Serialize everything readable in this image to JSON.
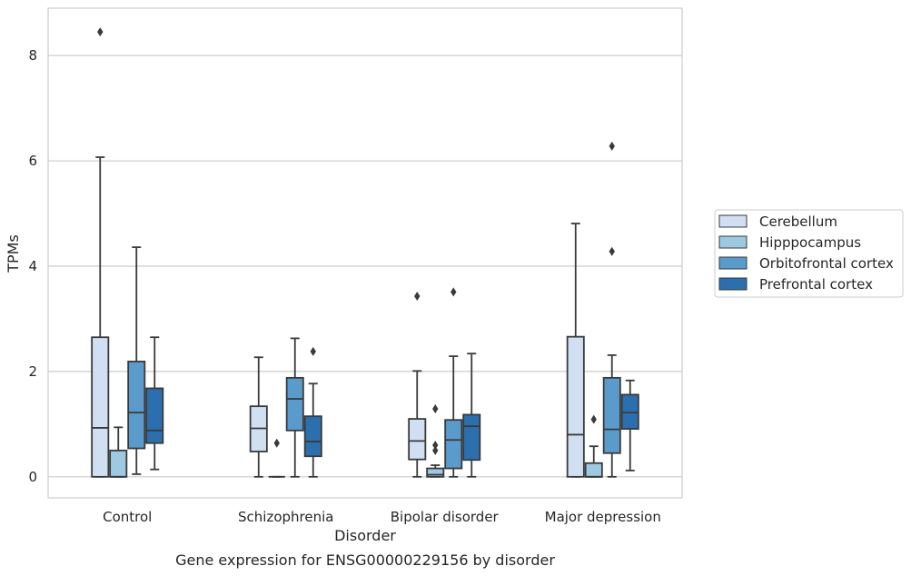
{
  "chart_data": {
    "type": "box",
    "categories": [
      "Control",
      "Schizophrenia",
      "Bipolar disorder",
      "Major depression"
    ],
    "xlabel": "Disorder",
    "ylabel": "TPMs",
    "caption": "Gene expression for ENSG00000229156 by disorder",
    "ylim": [
      -0.4,
      8.9
    ],
    "yticks": [
      0,
      2,
      4,
      6,
      8
    ],
    "grid": true,
    "legend_position": "right",
    "series": [
      {
        "name": "Cerebellum",
        "color": "#d0e0f2",
        "boxes": [
          {
            "whislo": 0.0,
            "q1": 0.0,
            "median": 0.93,
            "q3": 2.65,
            "whishi": 6.07,
            "fliers": [
              8.45
            ]
          },
          {
            "whislo": 0.0,
            "q1": 0.48,
            "median": 0.92,
            "q3": 1.34,
            "whishi": 2.27,
            "fliers": []
          },
          {
            "whislo": 0.0,
            "q1": 0.33,
            "median": 0.68,
            "q3": 1.1,
            "whishi": 2.01,
            "fliers": [
              3.43
            ]
          },
          {
            "whislo": 0.0,
            "q1": 0.0,
            "median": 0.8,
            "q3": 2.66,
            "whishi": 4.81,
            "fliers": []
          }
        ]
      },
      {
        "name": "Hipppocampus",
        "color": "#9ecae1",
        "boxes": [
          {
            "whislo": 0.0,
            "q1": 0.0,
            "median": 0.0,
            "q3": 0.5,
            "whishi": 0.94,
            "fliers": []
          },
          {
            "whislo": 0.0,
            "q1": 0.0,
            "median": 0.0,
            "q3": 0.0,
            "whishi": 0.0,
            "fliers": [
              0.64
            ]
          },
          {
            "whislo": 0.0,
            "q1": 0.0,
            "median": 0.04,
            "q3": 0.16,
            "whishi": 0.22,
            "fliers": [
              0.5,
              0.6,
              1.29
            ]
          },
          {
            "whislo": 0.0,
            "q1": 0.0,
            "median": 0.0,
            "q3": 0.26,
            "whishi": 0.58,
            "fliers": [
              1.09
            ]
          }
        ]
      },
      {
        "name": "Orbitofrontal cortex",
        "color": "#5b9bcb",
        "boxes": [
          {
            "whislo": 0.05,
            "q1": 0.54,
            "median": 1.22,
            "q3": 2.19,
            "whishi": 4.36,
            "fliers": []
          },
          {
            "whislo": 0.0,
            "q1": 0.88,
            "median": 1.48,
            "q3": 1.88,
            "whishi": 2.63,
            "fliers": []
          },
          {
            "whislo": 0.0,
            "q1": 0.16,
            "median": 0.7,
            "q3": 1.08,
            "whishi": 2.29,
            "fliers": [
              3.51
            ]
          },
          {
            "whislo": 0.0,
            "q1": 0.45,
            "median": 0.9,
            "q3": 1.88,
            "whishi": 2.31,
            "fliers": [
              4.28,
              6.28
            ]
          }
        ]
      },
      {
        "name": "Prefrontal cortex",
        "color": "#2c6fae",
        "boxes": [
          {
            "whislo": 0.14,
            "q1": 0.64,
            "median": 0.88,
            "q3": 1.68,
            "whishi": 2.65,
            "fliers": []
          },
          {
            "whislo": 0.0,
            "q1": 0.39,
            "median": 0.67,
            "q3": 1.15,
            "whishi": 1.77,
            "fliers": [
              2.38
            ]
          },
          {
            "whislo": 0.0,
            "q1": 0.32,
            "median": 0.96,
            "q3": 1.18,
            "whishi": 2.34,
            "fliers": []
          },
          {
            "whislo": 0.12,
            "q1": 0.91,
            "median": 1.22,
            "q3": 1.56,
            "whishi": 1.83,
            "fliers": []
          }
        ]
      }
    ]
  }
}
